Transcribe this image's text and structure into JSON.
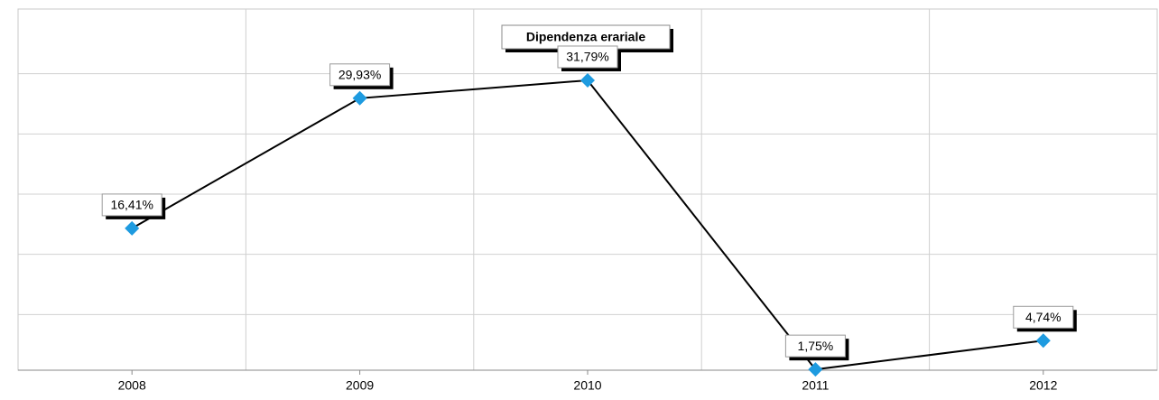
{
  "chart_data": {
    "type": "line",
    "title": "Dipendenza erariale",
    "categories": [
      "2008",
      "2009",
      "2010",
      "2011",
      "2012"
    ],
    "series": [
      {
        "name": "Dipendenza erariale",
        "color": "#1e9be0",
        "values": [
          16.41,
          29.93,
          31.79,
          1.75,
          4.74
        ],
        "value_labels": [
          "16,41%",
          "29,93%",
          "31,79%",
          "1,75%",
          "4,74%"
        ]
      }
    ],
    "ylim": [
      1.67,
      39.2
    ],
    "grid": true
  }
}
